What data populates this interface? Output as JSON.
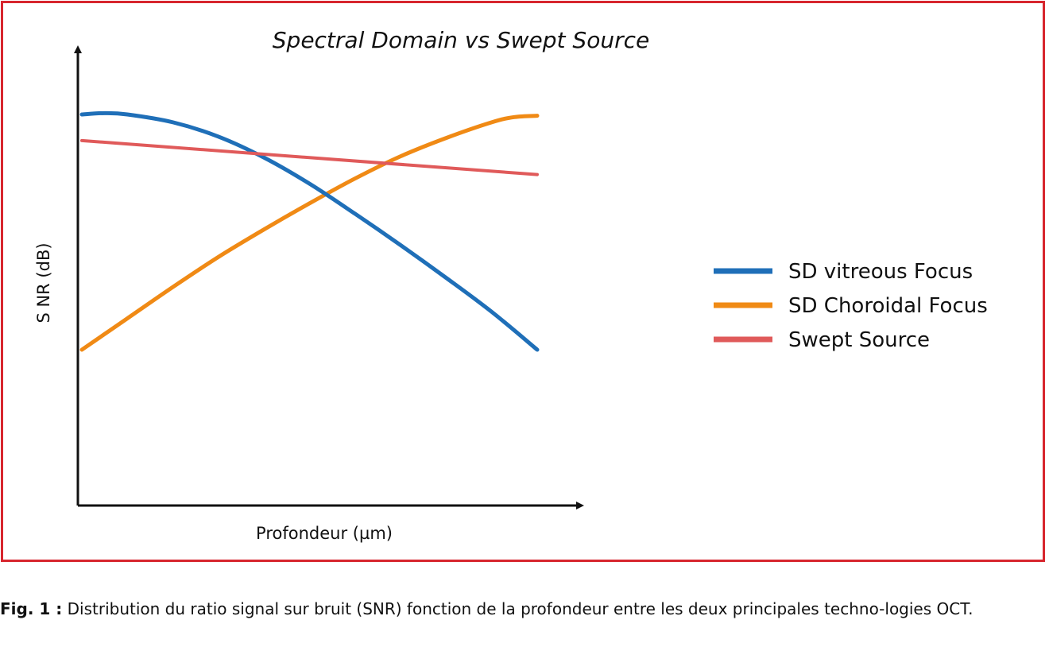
{
  "chart_data": {
    "type": "line",
    "title": "Spectral Domain vs Swept Source",
    "xlabel": "Profondeur (µm)",
    "ylabel": "S NR (dB)",
    "xlim": [
      0,
      100
    ],
    "ylim": [
      0,
      100
    ],
    "grid": false,
    "legend_position": "right",
    "series": [
      {
        "name": "SD vitreous Focus",
        "color": "#1f6fb8",
        "x": [
          0,
          5,
          10,
          20,
          30,
          40,
          50,
          60,
          70,
          80,
          90,
          100
        ],
        "y": [
          100,
          100.5,
          100,
          97,
          91.5,
          83.5,
          73.5,
          62,
          50,
          37.5,
          24.5,
          10
        ]
      },
      {
        "name": "SD Choroidal Focus",
        "color": "#f08a15",
        "x": [
          0,
          10,
          20,
          30,
          40,
          50,
          60,
          70,
          80,
          90,
          95,
          100
        ],
        "y": [
          10,
          22,
          34,
          45.5,
          56,
          66,
          75.5,
          84,
          91,
          97,
          99,
          99.5
        ]
      },
      {
        "name": "Swept Source",
        "color": "#e05a5a",
        "x": [
          0,
          100
        ],
        "y": [
          90,
          77
        ]
      }
    ]
  },
  "caption": {
    "label": "Fig. 1 :",
    "text": " Distribution du ratio signal sur bruit (SNR) fonction de la profondeur entre les deux principales techno-logies OCT."
  }
}
